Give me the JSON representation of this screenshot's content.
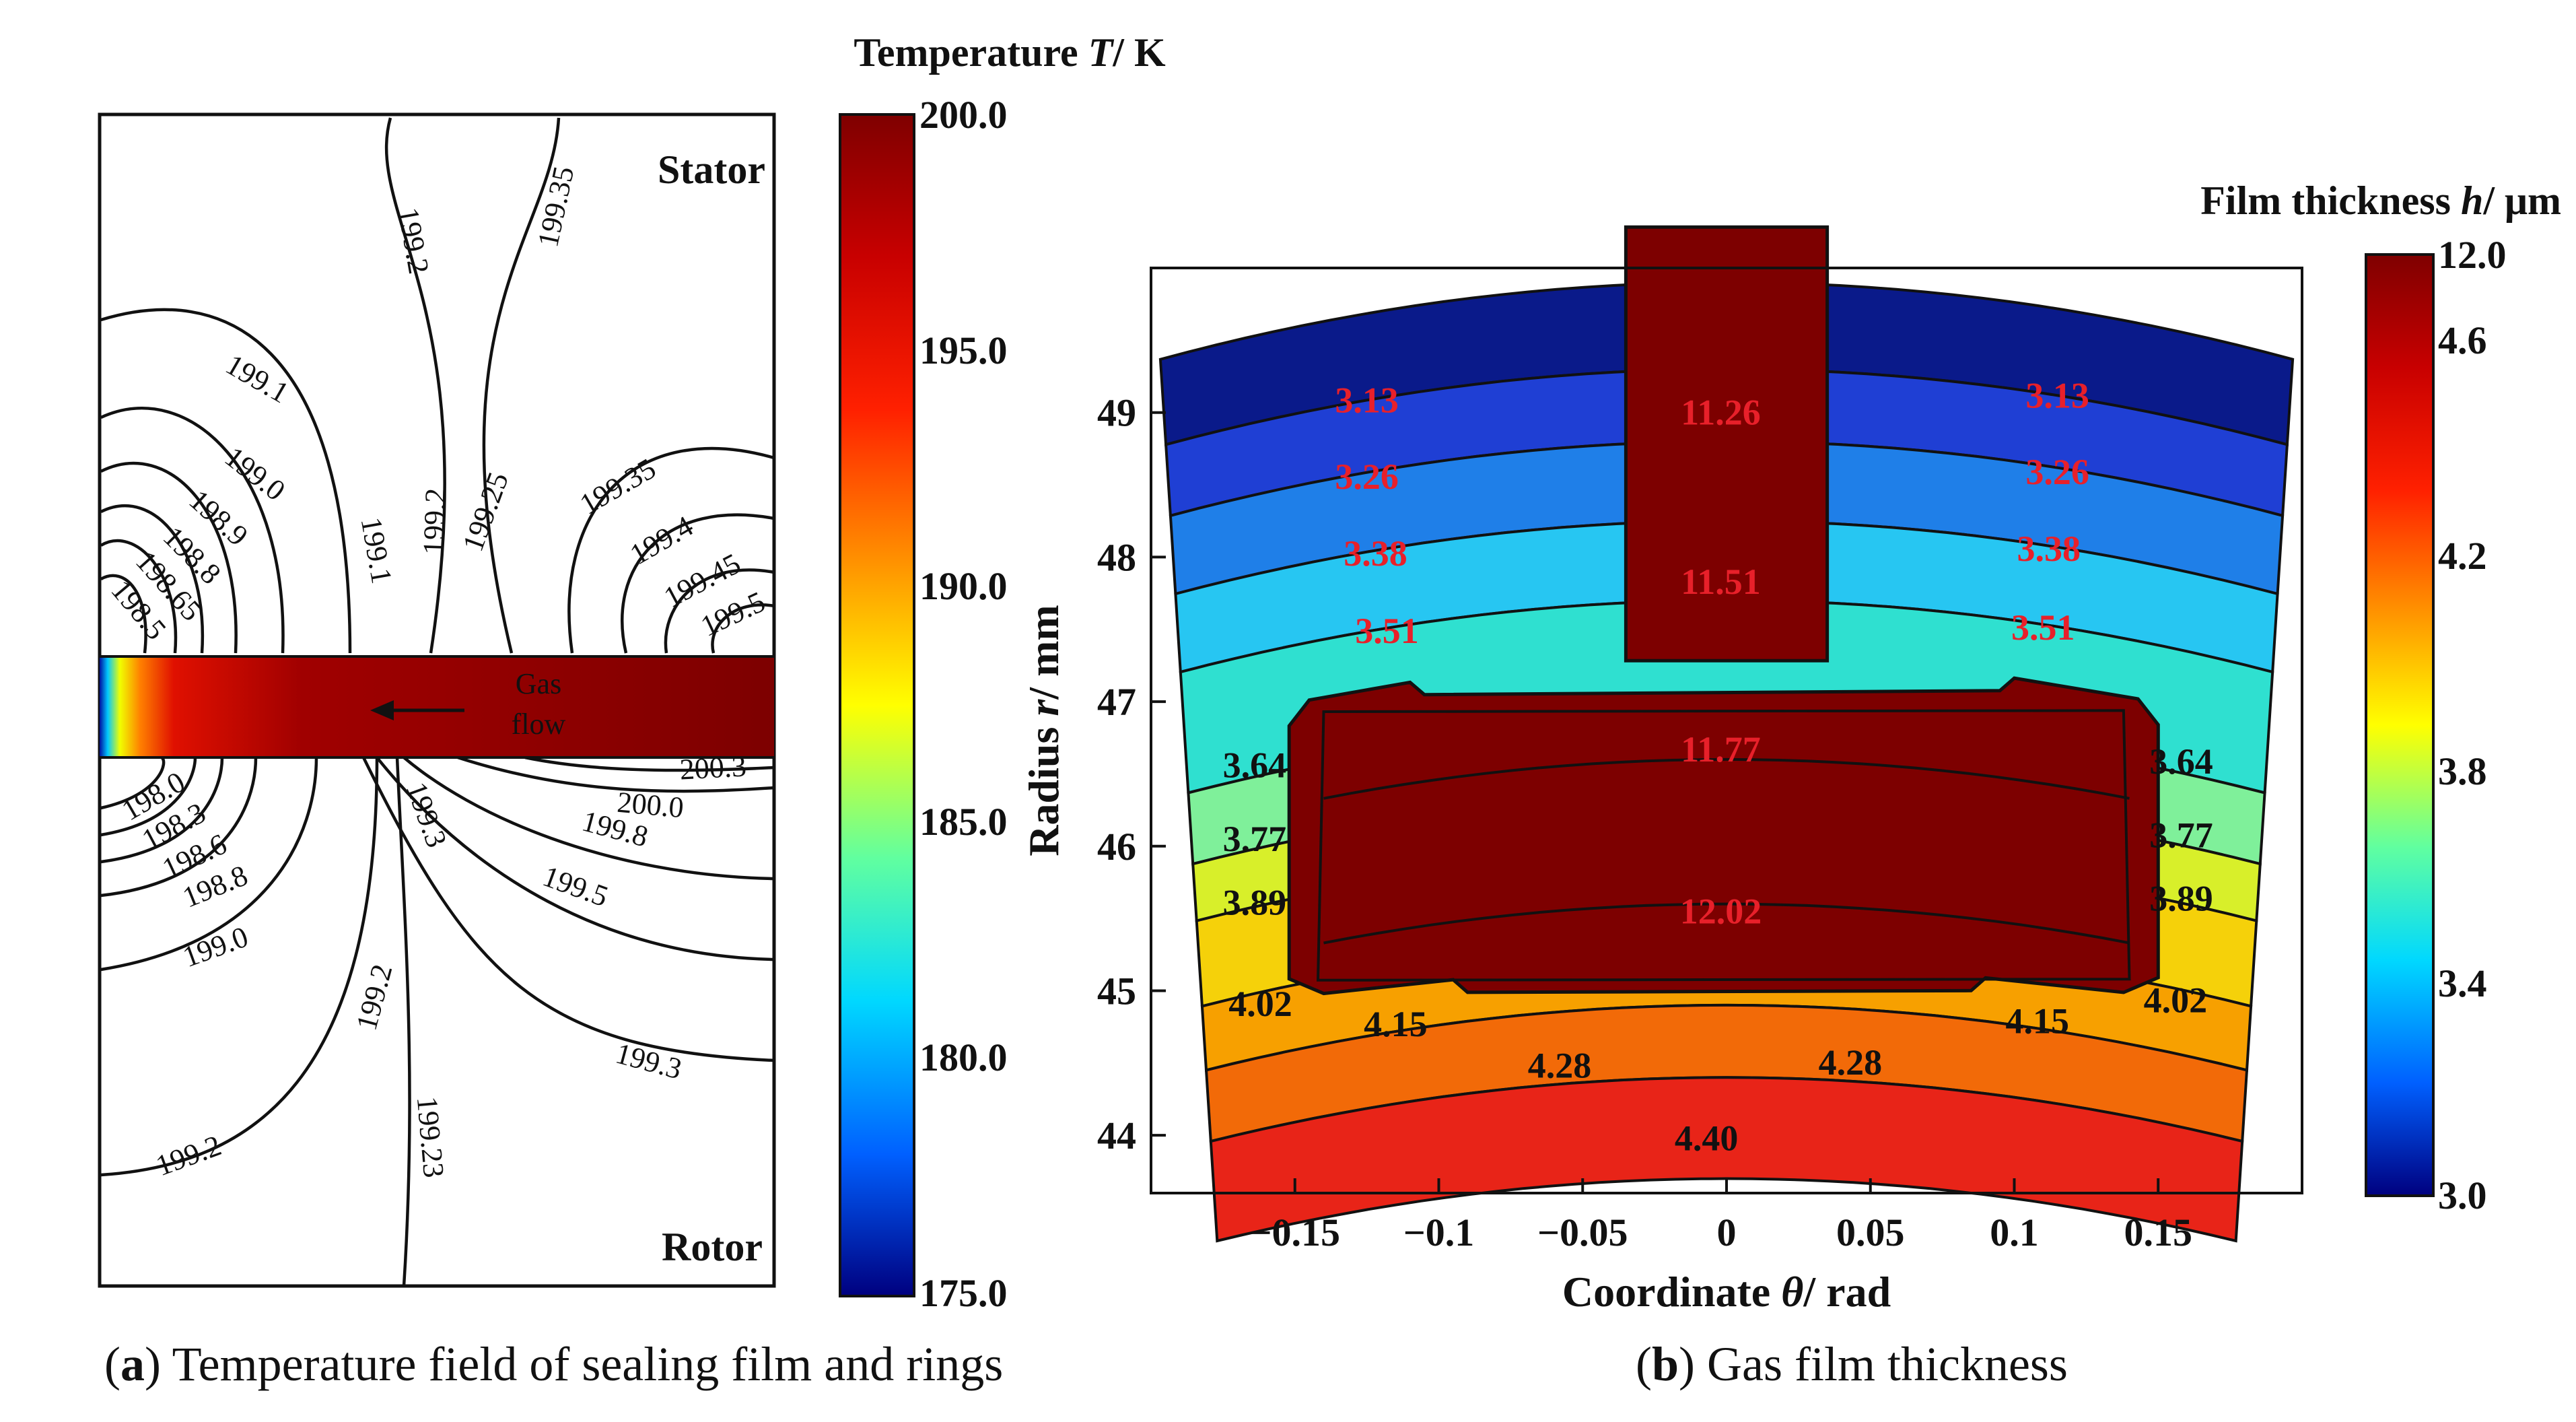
{
  "chart_data": [
    {
      "id": "a",
      "type": "heatmap",
      "title": "Temperature field of sealing film and rings",
      "caption_letter": "a",
      "caption_text": "Temperature field of sealing film and rings",
      "colorbar": {
        "title_prefix": "Temperature ",
        "title_var": "T",
        "title_unit": "/  K",
        "min": 175.0,
        "max": 200.0,
        "ticks": [
          "200.0",
          "195.0",
          "190.0",
          "185.0",
          "180.0",
          "175.0"
        ]
      },
      "region_labels": {
        "top": "Stator",
        "bottom": "Rotor"
      },
      "flow_label": [
        "Gas",
        "flow"
      ],
      "contour_labels_stator": [
        "199.2",
        "199.35",
        "199.1",
        "199.0",
        "198.9",
        "198.8",
        "198.65",
        "198.5",
        "199.1",
        "199.2",
        "199.25",
        "199.35",
        "199.4",
        "199.45",
        "199.5"
      ],
      "contour_labels_rotor": [
        "198.0",
        "198.3",
        "198.6",
        "198.8",
        "199.0",
        "199.3",
        "200.3",
        "200.0",
        "199.8",
        "199.5",
        "199.2",
        "199.3",
        "199.2",
        "199.23"
      ]
    },
    {
      "id": "b",
      "type": "heatmap",
      "title": "Gas film thickness",
      "caption_letter": "b",
      "caption_text": "Gas film thickness",
      "xlabel_prefix": "Coordinate ",
      "xlabel_var": "θ",
      "xlabel_unit": "/  rad",
      "ylabel_prefix": "Radius ",
      "ylabel_var": "r",
      "ylabel_unit": "/  mm",
      "xlim": [
        -0.2,
        0.2
      ],
      "ylim": [
        43.6,
        50.0
      ],
      "xticks": [
        -0.15,
        -0.1,
        -0.05,
        0,
        0.05,
        0.1,
        0.15
      ],
      "xtick_labels": [
        "−0.15",
        "−0.1",
        "−0.05",
        "0",
        "0.05",
        "0.1",
        "0.15"
      ],
      "yticks": [
        44,
        45,
        46,
        47,
        48,
        49
      ],
      "ytick_labels": [
        "44",
        "45",
        "46",
        "47",
        "48",
        "49"
      ],
      "colorbar": {
        "title_prefix": "Film thickness  ",
        "title_var": "h",
        "title_unit": "/  μm",
        "ticks": [
          "12.0",
          "4.6",
          "4.2",
          "3.8",
          "3.4",
          "3.0"
        ]
      },
      "bands": [
        {
          "r0": 49.3,
          "r1": 49.9,
          "h": 3.13,
          "color": "#0a1a8a"
        },
        {
          "r0": 48.8,
          "r1": 49.3,
          "h": 3.26,
          "color": "#1f3fd4"
        },
        {
          "r0": 48.25,
          "r1": 48.8,
          "h": 3.38,
          "color": "#1f7fe8"
        },
        {
          "r0": 47.7,
          "r1": 48.25,
          "h": 3.51,
          "color": "#27c6f2"
        },
        {
          "r0": 46.85,
          "r1": 47.7,
          "h": 3.64,
          "color": "#2fe0d0"
        },
        {
          "r0": 46.35,
          "r1": 46.85,
          "h": 3.77,
          "color": "#7ff09a"
        },
        {
          "r0": 45.95,
          "r1": 46.35,
          "h": 3.89,
          "color": "#d8ef2a"
        },
        {
          "r0": 45.35,
          "r1": 45.95,
          "h": 4.02,
          "color": "#f5d10a"
        },
        {
          "r0": 44.9,
          "r1": 45.35,
          "h": 4.15,
          "color": "#f7a000"
        },
        {
          "r0": 44.4,
          "r1": 44.9,
          "h": 4.28,
          "color": "#f26a08"
        },
        {
          "r0": 43.7,
          "r1": 44.4,
          "h": 4.4,
          "color": "#e82418"
        }
      ],
      "groove_color": "#7d0000",
      "contour_labels_outer": [
        {
          "text": "3.13",
          "x": -0.125,
          "r": 49.3
        },
        {
          "text": "3.26",
          "x": -0.125,
          "r": 48.77
        },
        {
          "text": "3.38",
          "x": -0.122,
          "r": 48.23
        },
        {
          "text": "3.51",
          "x": -0.118,
          "r": 47.68
        },
        {
          "text": "3.13",
          "x": 0.115,
          "r": 49.3
        },
        {
          "text": "3.26",
          "x": 0.115,
          "r": 48.77
        },
        {
          "text": "3.38",
          "x": 0.112,
          "r": 48.23
        },
        {
          "text": "3.51",
          "x": 0.11,
          "r": 47.68
        }
      ],
      "contour_labels_side": [
        {
          "text": "3.64",
          "x": -0.164,
          "r": 46.93
        },
        {
          "text": "3.77",
          "x": -0.164,
          "r": 46.42
        },
        {
          "text": "3.89",
          "x": -0.164,
          "r": 45.98
        },
        {
          "text": "4.02",
          "x": -0.162,
          "r": 45.27
        },
        {
          "text": "3.64",
          "x": 0.158,
          "r": 46.93
        },
        {
          "text": "3.77",
          "x": 0.158,
          "r": 46.42
        },
        {
          "text": "3.89",
          "x": 0.158,
          "r": 45.98
        },
        {
          "text": "4.02",
          "x": 0.156,
          "r": 45.27
        }
      ],
      "contour_labels_lower": [
        {
          "text": "4.15",
          "x": -0.115,
          "r": 44.95
        },
        {
          "text": "4.28",
          "x": -0.058,
          "r": 44.53
        },
        {
          "text": "4.28",
          "x": 0.043,
          "r": 44.53
        },
        {
          "text": "4.15",
          "x": 0.108,
          "r": 44.95
        },
        {
          "text": "4.40",
          "x": -0.007,
          "r": 43.98
        }
      ],
      "contour_labels_groove": [
        {
          "text": "11.26",
          "x": -0.002,
          "r": 49.0
        },
        {
          "text": "11.51",
          "x": -0.002,
          "r": 47.83
        },
        {
          "text": "11.77",
          "x": -0.002,
          "r": 46.67
        },
        {
          "text": "12.02",
          "x": -0.002,
          "r": 45.55
        }
      ]
    }
  ]
}
